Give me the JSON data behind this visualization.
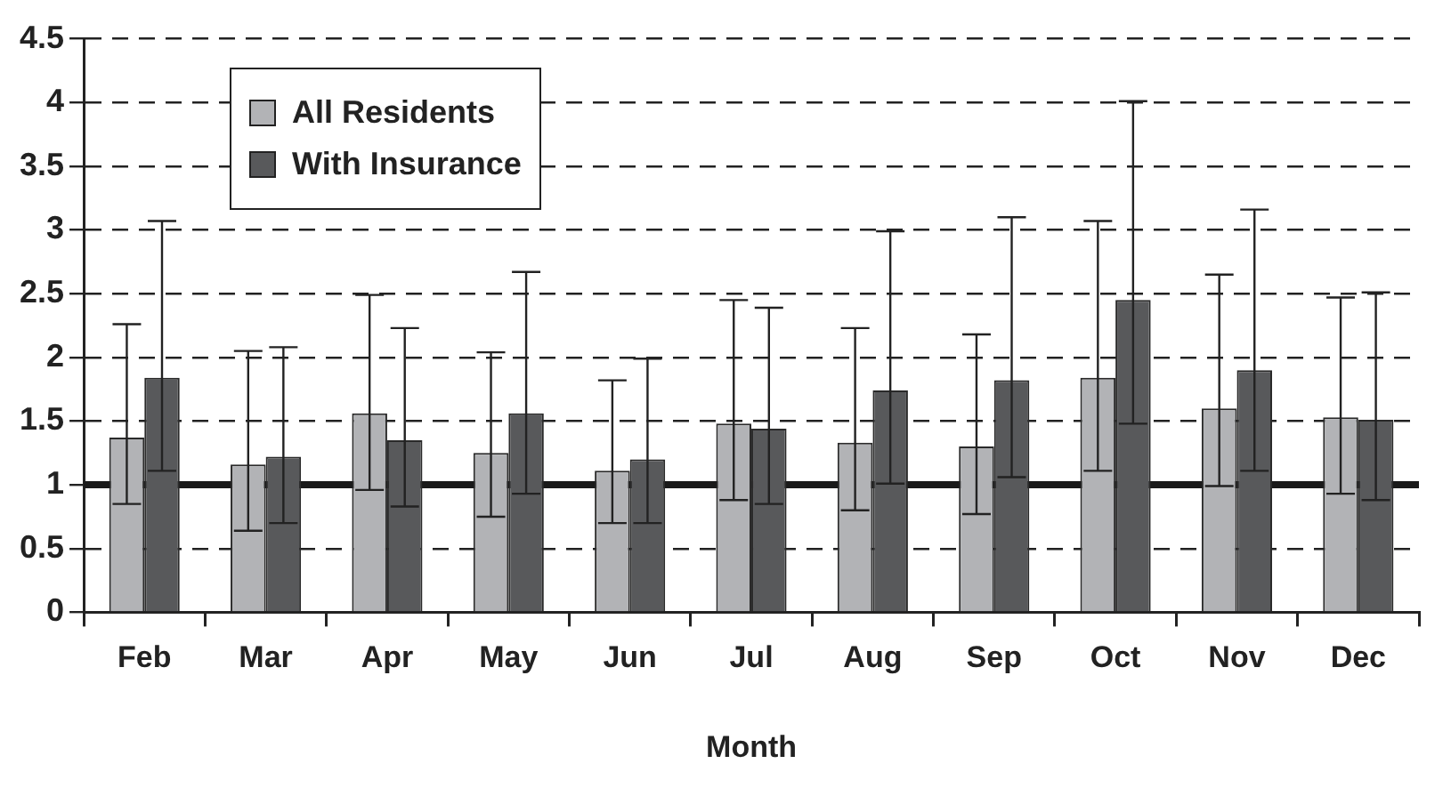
{
  "chart_data": {
    "type": "bar",
    "xlabel": "Month",
    "categories": [
      "Feb",
      "Mar",
      "Apr",
      "May",
      "Jun",
      "Jul",
      "Aug",
      "Sep",
      "Oct",
      "Nov",
      "Dec"
    ],
    "series": [
      {
        "name": "All Residents",
        "color": "#b2b3b6",
        "values": [
          1.37,
          1.16,
          1.56,
          1.25,
          1.11,
          1.48,
          1.33,
          1.3,
          1.84,
          1.6,
          1.53
        ],
        "errors": [
          [
            0.85,
            2.26
          ],
          [
            0.64,
            2.05
          ],
          [
            0.96,
            2.49
          ],
          [
            0.75,
            2.04
          ],
          [
            0.7,
            1.82
          ],
          [
            0.88,
            2.45
          ],
          [
            0.8,
            2.23
          ],
          [
            0.77,
            2.18
          ],
          [
            1.11,
            3.07
          ],
          [
            0.99,
            2.65
          ],
          [
            0.93,
            2.47
          ]
        ]
      },
      {
        "name": "With Insurance",
        "color": "#58595b",
        "values": [
          1.84,
          1.22,
          1.35,
          1.56,
          1.2,
          1.44,
          1.74,
          1.82,
          2.45,
          1.9,
          1.51
        ],
        "errors": [
          [
            1.11,
            3.07
          ],
          [
            0.7,
            2.08
          ],
          [
            0.83,
            2.23
          ],
          [
            0.93,
            2.67
          ],
          [
            0.7,
            1.99
          ],
          [
            0.85,
            2.39
          ],
          [
            1.01,
            2.99
          ],
          [
            1.06,
            3.1
          ],
          [
            1.48,
            4.01
          ],
          [
            1.11,
            3.16
          ],
          [
            0.88,
            2.51
          ]
        ]
      }
    ],
    "ylim": [
      0,
      4.5
    ],
    "yticks": [
      0,
      0.5,
      1,
      1.5,
      2,
      2.5,
      3,
      3.5,
      4,
      4.5
    ],
    "grid": "y",
    "legend": "top left",
    "ref_lines": [
      {
        "axis": "y",
        "value": 1,
        "color": "#1a1a1a"
      }
    ]
  }
}
